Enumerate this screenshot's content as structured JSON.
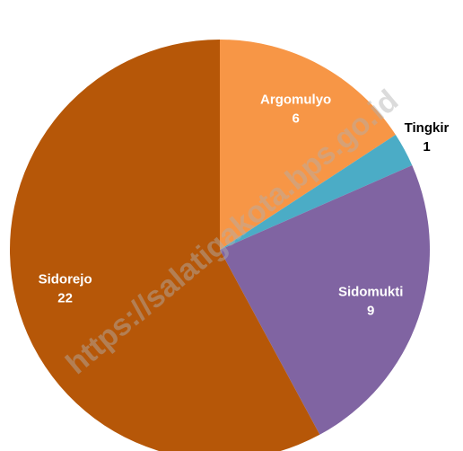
{
  "chart_data": {
    "type": "pie",
    "categories": [
      "Argomulyo",
      "Tingkir",
      "Sidomukti",
      "Sidorejo"
    ],
    "values": [
      6,
      1,
      9,
      22
    ],
    "colors": [
      "#f79646",
      "#4bacc6",
      "#8064a2",
      "#b65708"
    ],
    "start_angle": 0,
    "direction": "clockwise"
  },
  "watermark": "https://salatigakota.bps.go.id"
}
